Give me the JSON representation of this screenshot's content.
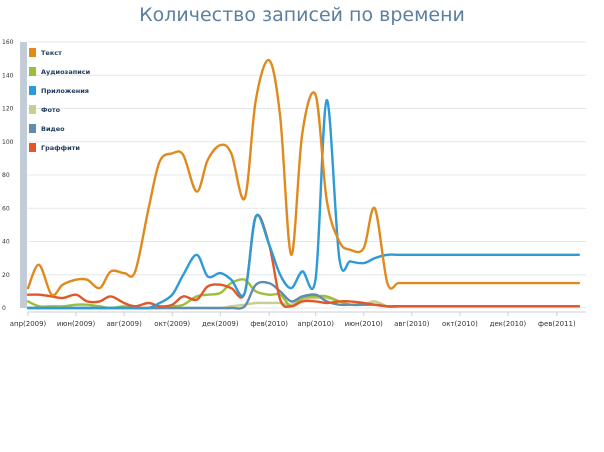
{
  "chart_data": {
    "type": "line",
    "title": "Количество записей по времени",
    "xlabel": "",
    "ylabel": "",
    "ylim": [
      0,
      160
    ],
    "y_ticks": [
      0,
      20,
      40,
      60,
      80,
      100,
      120,
      140,
      160
    ],
    "x_tick_labels": [
      "апр(2009)",
      "июн(2009)",
      "авг(2009)",
      "окт(2009)",
      "дек(2009)",
      "фев(2010)",
      "апр(2010)",
      "июн(2010)",
      "авг(2010)",
      "окт(2010)",
      "дек(2010)",
      "фев(2011)"
    ],
    "grid": true,
    "legend_position": "top-left",
    "x": [
      "2009-04-01",
      "2009-04-15",
      "2009-05-01",
      "2009-05-15",
      "2009-06-01",
      "2009-06-15",
      "2009-07-01",
      "2009-07-15",
      "2009-08-01",
      "2009-08-15",
      "2009-09-01",
      "2009-09-15",
      "2009-10-01",
      "2009-10-15",
      "2009-11-01",
      "2009-11-15",
      "2009-12-01",
      "2009-12-15",
      "2010-01-01",
      "2010-01-15",
      "2010-02-01",
      "2010-02-15",
      "2010-03-01",
      "2010-03-15",
      "2010-04-01",
      "2010-04-15",
      "2010-05-01",
      "2010-05-15",
      "2010-06-01",
      "2010-06-15",
      "2010-07-01",
      "2010-07-15",
      "2010-08-01",
      "2010-08-15",
      "2010-09-01",
      "2010-09-15",
      "2010-10-01",
      "2010-10-15",
      "2010-11-01",
      "2010-11-15",
      "2010-12-01",
      "2010-12-15",
      "2011-01-01",
      "2011-01-15",
      "2011-02-01",
      "2011-02-15",
      "2011-03-01"
    ],
    "series": [
      {
        "name": "Текст",
        "color": "#e08a1e",
        "values": [
          12,
          26,
          8,
          14,
          17,
          17,
          12,
          22,
          21,
          22,
          60,
          88,
          93,
          92,
          70,
          89,
          98,
          93,
          66,
          125,
          149,
          115,
          32,
          105,
          128,
          65,
          40,
          35,
          36,
          60,
          15,
          15,
          15,
          15,
          15,
          15,
          15,
          15,
          15,
          15,
          15,
          15,
          15,
          15,
          15,
          15,
          15
        ]
      },
      {
        "name": "Аудиозаписи",
        "color": "#9cbf3b",
        "values": [
          4,
          1,
          1,
          1,
          2,
          2,
          1,
          0,
          1,
          0,
          0,
          0,
          1,
          2,
          7,
          8,
          9,
          15,
          17,
          10,
          8,
          8,
          1,
          6,
          7,
          7,
          4,
          2,
          2,
          2,
          1,
          1,
          1,
          1,
          1,
          1,
          1,
          1,
          1,
          1,
          1,
          1,
          1,
          1,
          1,
          1,
          1
        ]
      },
      {
        "name": "Приложения",
        "color": "#2e9ad6",
        "values": [
          0,
          0,
          0,
          0,
          0,
          0,
          0,
          0,
          0,
          0,
          0,
          3,
          8,
          20,
          32,
          19,
          21,
          17,
          9,
          55,
          38,
          20,
          12,
          22,
          18,
          125,
          30,
          28,
          27,
          30,
          32,
          32,
          32,
          32,
          32,
          32,
          32,
          32,
          32,
          32,
          32,
          32,
          32,
          32,
          32,
          32,
          32
        ]
      },
      {
        "name": "Фото",
        "color": "#c5cf8f",
        "values": [
          0,
          0,
          0,
          0,
          0,
          0,
          0,
          0,
          0,
          0,
          0,
          0,
          0,
          0,
          0,
          0,
          0,
          1,
          2,
          3,
          3,
          3,
          2,
          5,
          6,
          6,
          4,
          2,
          2,
          4,
          1,
          1,
          1,
          1,
          1,
          1,
          1,
          1,
          1,
          1,
          1,
          1,
          1,
          1,
          1,
          1,
          1
        ]
      },
      {
        "name": "Видео",
        "color": "#5f8caf",
        "values": [
          0,
          0,
          0,
          0,
          0,
          0,
          0,
          0,
          0,
          0,
          0,
          0,
          0,
          0,
          0,
          0,
          0,
          0,
          1,
          14,
          15,
          10,
          4,
          7,
          8,
          4,
          2,
          2,
          2,
          2,
          1,
          1,
          1,
          1,
          1,
          1,
          1,
          1,
          1,
          1,
          1,
          1,
          1,
          1,
          1,
          1,
          1
        ]
      },
      {
        "name": "Граффити",
        "color": "#e2572a",
        "values": [
          8,
          8,
          7,
          6,
          8,
          4,
          4,
          7,
          3,
          1,
          3,
          1,
          2,
          7,
          5,
          13,
          14,
          12,
          9,
          55,
          38,
          5,
          1,
          4,
          4,
          3,
          4,
          4,
          3,
          2,
          1,
          1,
          1,
          1,
          1,
          1,
          1,
          1,
          1,
          1,
          1,
          1,
          1,
          1,
          1,
          1,
          1
        ]
      }
    ]
  }
}
